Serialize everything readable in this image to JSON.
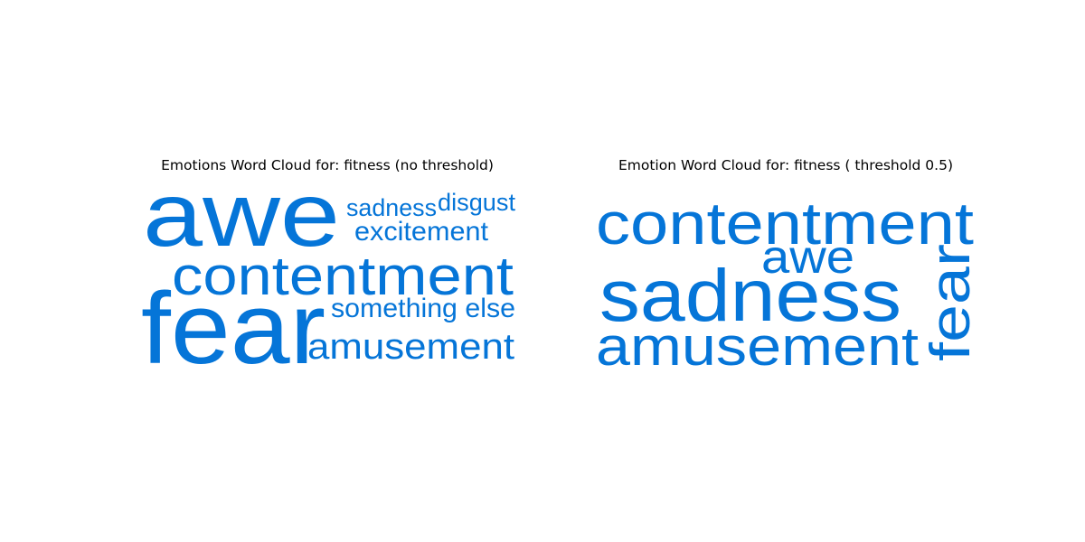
{
  "chart_data": [
    {
      "type": "wordcloud",
      "title": "Emotions Word Cloud for: fitness (no threshold)",
      "color": "#0575d8",
      "words": [
        {
          "text": "awe",
          "rank": 1
        },
        {
          "text": "fear",
          "rank": 2
        },
        {
          "text": "contentment",
          "rank": 3
        },
        {
          "text": "amusement",
          "rank": 4
        },
        {
          "text": "something else",
          "rank": 5
        },
        {
          "text": "excitement",
          "rank": 6
        },
        {
          "text": "disgust",
          "rank": 7
        },
        {
          "text": "sadness",
          "rank": 8
        }
      ]
    },
    {
      "type": "wordcloud",
      "title": "Emotion Word Cloud for: fitness ( threshold 0.5)",
      "color": "#0575d8",
      "words": [
        {
          "text": "sadness",
          "rank": 1
        },
        {
          "text": "contentment",
          "rank": 2
        },
        {
          "text": "amusement",
          "rank": 3
        },
        {
          "text": "fear",
          "rank": 4
        },
        {
          "text": "awe",
          "rank": 5
        }
      ]
    }
  ]
}
